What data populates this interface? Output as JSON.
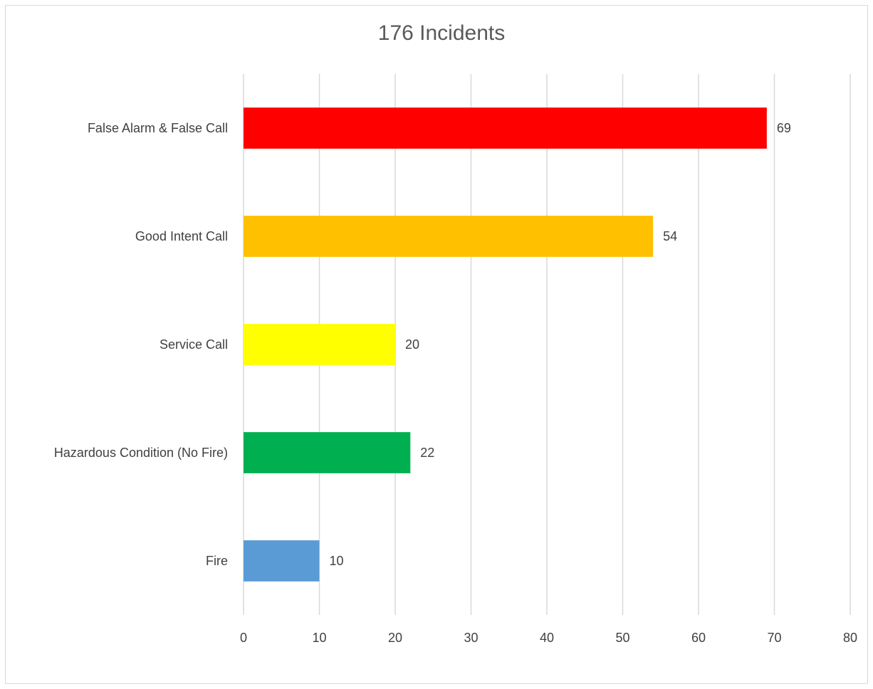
{
  "chart_data": {
    "type": "bar",
    "orientation": "horizontal",
    "title": "176 Incidents",
    "xlabel": "",
    "ylabel": "",
    "xlim": [
      0,
      80
    ],
    "x_ticks": [
      0,
      10,
      20,
      30,
      40,
      50,
      60,
      70,
      80
    ],
    "grid": true,
    "legend": "none",
    "categories": [
      "False Alarm & False Call",
      "Good Intent Call",
      "Service Call",
      "Hazardous Condition (No Fire)",
      "Fire"
    ],
    "values": [
      69,
      54,
      20,
      22,
      10
    ],
    "colors": [
      "#ff0000",
      "#ffc000",
      "#ffff00",
      "#00b050",
      "#5b9bd5"
    ],
    "data_labels": [
      "69",
      "54",
      "20",
      "22",
      "10"
    ]
  }
}
